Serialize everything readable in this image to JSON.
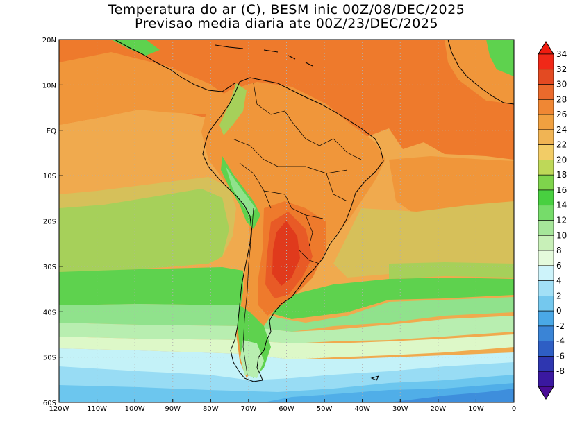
{
  "title": {
    "line1": "Temperatura do ar (C), BESM inic 00Z/08/DEC/2025",
    "line2": "Previsao media diaria ate 00Z/23/DEC/2025"
  },
  "map": {
    "lon_range": [
      -120,
      0
    ],
    "lat_range": [
      -60,
      20
    ],
    "lon_ticks": [
      {
        "value": -120,
        "label": "120W"
      },
      {
        "value": -110,
        "label": "110W"
      },
      {
        "value": -100,
        "label": "100W"
      },
      {
        "value": -90,
        "label": "90W"
      },
      {
        "value": -80,
        "label": "80W"
      },
      {
        "value": -70,
        "label": "70W"
      },
      {
        "value": -60,
        "label": "60W"
      },
      {
        "value": -50,
        "label": "50W"
      },
      {
        "value": -40,
        "label": "40W"
      },
      {
        "value": -30,
        "label": "30W"
      },
      {
        "value": -20,
        "label": "20W"
      },
      {
        "value": -10,
        "label": "10W"
      },
      {
        "value": 0,
        "label": "0"
      }
    ],
    "lat_ticks": [
      {
        "value": 20,
        "label": "20N"
      },
      {
        "value": 10,
        "label": "10N"
      },
      {
        "value": 0,
        "label": "EQ"
      },
      {
        "value": -10,
        "label": "10S"
      },
      {
        "value": -20,
        "label": "20S"
      },
      {
        "value": -30,
        "label": "30S"
      },
      {
        "value": -40,
        "label": "40S"
      },
      {
        "value": -50,
        "label": "50S"
      },
      {
        "value": -60,
        "label": "60S"
      }
    ],
    "colors": {
      "t28": "#ee7a2c",
      "t26": "#f0963a",
      "t24": "#f0aa4e",
      "t22": "#d6c05a",
      "t20": "#a6d05a",
      "t18": "#5ed24e",
      "t14": "#90e28c",
      "t12": "#b8eeb0",
      "t10": "#ddf8c8",
      "t8": "#c4f2f8",
      "t6": "#98dcf4",
      "t4": "#6cc6ee",
      "t2": "#50aee8",
      "t0": "#3e8edc",
      "t30": "#e85a26",
      "t32": "#e03a1c",
      "coast": "#000000",
      "grid": "#b0b0b0"
    }
  },
  "colorbar": {
    "levels": [
      {
        "value": 34,
        "label": "34",
        "color": "#f02818"
      },
      {
        "value": 32,
        "label": "32",
        "color": "#e34a22"
      },
      {
        "value": 30,
        "label": "30",
        "color": "#ea6a2c"
      },
      {
        "value": 28,
        "label": "28",
        "color": "#ef8734"
      },
      {
        "value": 26,
        "label": "26",
        "color": "#f0a040"
      },
      {
        "value": 24,
        "label": "24",
        "color": "#f0b454"
      },
      {
        "value": 22,
        "label": "22",
        "color": "#f2cc66"
      },
      {
        "value": 20,
        "label": "20",
        "color": "#bed858"
      },
      {
        "value": 18,
        "label": "18",
        "color": "#7ed44c"
      },
      {
        "value": 16,
        "label": "16",
        "color": "#48d040"
      },
      {
        "value": 14,
        "label": "14",
        "color": "#76dc6a"
      },
      {
        "value": 12,
        "label": "12",
        "color": "#a6e69a"
      },
      {
        "value": 10,
        "label": "10",
        "color": "#c8f0b8"
      },
      {
        "value": 8,
        "label": "8",
        "color": "#e4fadc"
      },
      {
        "value": 6,
        "label": "6",
        "color": "#cdf3fa"
      },
      {
        "value": 4,
        "label": "4",
        "color": "#a2e0f6"
      },
      {
        "value": 2,
        "label": "2",
        "color": "#74c8ee"
      },
      {
        "value": 0,
        "label": "0",
        "color": "#4aa8e6"
      },
      {
        "value": -2,
        "label": "-2",
        "color": "#3a84d6"
      },
      {
        "value": -4,
        "label": "-4",
        "color": "#2e5ec4"
      },
      {
        "value": -6,
        "label": "-6",
        "color": "#2e36b0"
      },
      {
        "value": -8,
        "label": "-8",
        "color": "#3a18a0"
      }
    ],
    "top_color": "#f01c10",
    "bottom_color": "#4a0c96"
  }
}
